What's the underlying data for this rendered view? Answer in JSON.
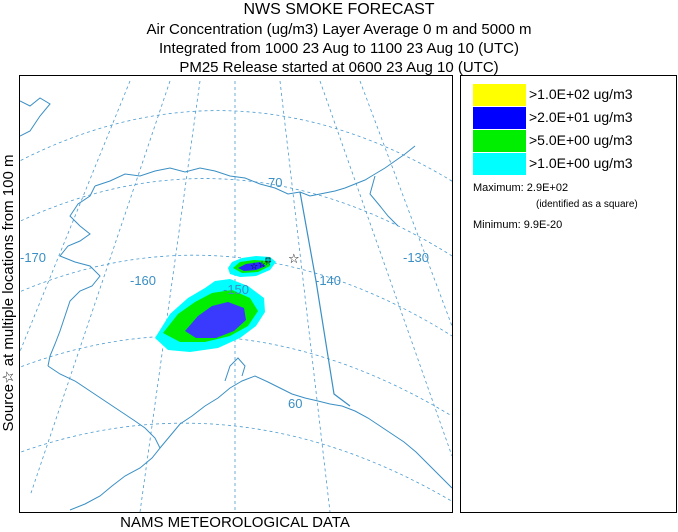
{
  "title": {
    "main": "NWS SMOKE FORECAST",
    "line1": "Air Concentration (ug/m3) Layer Average    0 m and  5000 m",
    "line2": "Integrated from 1000 23 Aug to 1100 23 Aug 10 (UTC)",
    "line3": "PM25 Release started at 0600 23 Aug 10 (UTC)"
  },
  "side_label": "Source☆   at multiple locations    from   100 m",
  "footer": "NAMS METEOROLOGICAL DATA",
  "map": {
    "longitude_labels": [
      "-170",
      "-160",
      "-150",
      "-140",
      "-130"
    ],
    "latitude_labels": [
      "70",
      "60"
    ],
    "source_marker": "☆"
  },
  "legend": {
    "items": [
      {
        "label": ">1.0E+02 ug/m3",
        "color": "#ffff00"
      },
      {
        "label": ">2.0E+01 ug/m3",
        "color": "#0000ff"
      },
      {
        "label": ">5.0E+00 ug/m3",
        "color": "#00ee00"
      },
      {
        "label": ">1.0E+00 ug/m3",
        "color": "#00ffff"
      }
    ],
    "maximum_label": "Maximum:",
    "maximum_value": "2.9E+02",
    "maximum_note": "(identified as a square)",
    "minimum_label": "Minimum:",
    "minimum_value": "9.9E-20"
  },
  "colors": {
    "coastline": "#3a8fc4",
    "graticule": "#4a9bd0",
    "border": "#3a8fc4"
  }
}
